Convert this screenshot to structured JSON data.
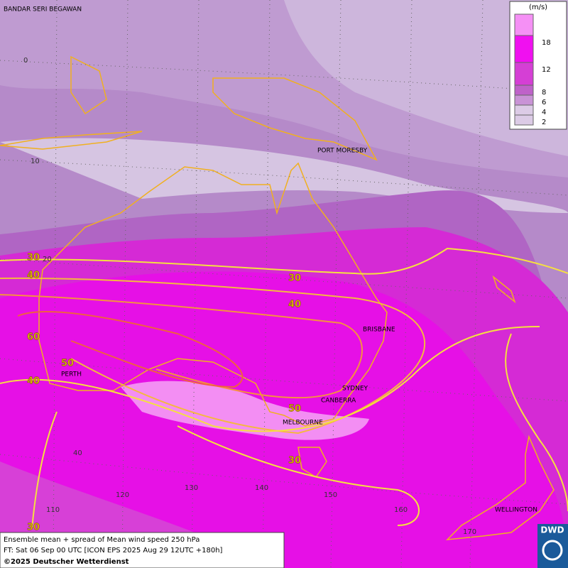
{
  "legend": {
    "unit": "(m/s)",
    "levels": [
      18,
      12,
      8,
      6,
      4,
      2
    ]
  },
  "cities": [
    "BANDAR SERI BEGAWAN",
    "PORT MORESBY",
    "BRISBANE",
    "SYDNEY",
    "CANBERRA",
    "MELBOURNE",
    "PERTH",
    "WELLINGTON"
  ],
  "contour_labels": [
    30,
    40,
    60,
    50,
    40,
    30,
    40,
    50,
    30,
    30
  ],
  "grid_labels": [
    0,
    10,
    20,
    40,
    110,
    120,
    130,
    140,
    150,
    160,
    170
  ],
  "footer": {
    "title": "Ensemble mean + spread of Mean wind speed 250 hPa",
    "forecast": "FT: Sat 06 Sep 00 UTC [ICON EPS 2025 Aug 29 12UTC +180h]",
    "copyright": "©2025 Deutscher Wetterdienst"
  },
  "logo": "DWD"
}
